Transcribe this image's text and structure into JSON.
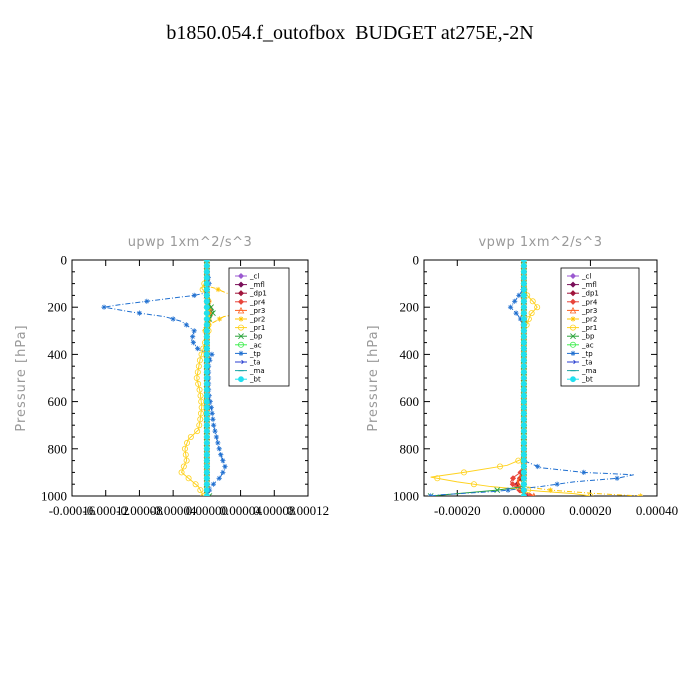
{
  "title": "b1850.054.f_outofbox  BUDGET at275E,-2N",
  "chart_data": [
    {
      "type": "line",
      "title": "upwp   1xm^2/s^3",
      "ylabel": "Pressure [hPa]",
      "xlim": [
        -0.00016,
        0.00012
      ],
      "ylim": [
        1000,
        0
      ],
      "xticks": [
        "-0.00016",
        "-0.00012",
        "-0.00008",
        "-0.00004",
        "0.00000",
        "0.00004",
        "0.00008",
        "0.00012"
      ],
      "yticks": [
        "0",
        "200",
        "400",
        "600",
        "800",
        "1000"
      ],
      "legend_position": "top-right",
      "series": [
        {
          "name": "_cl",
          "color": "#9b59d0",
          "marker": "diamond",
          "points": [
            [
              0,
              0
            ],
            [
              0,
              1000
            ]
          ]
        },
        {
          "name": "_mfl",
          "color": "#7a0f5a",
          "marker": "diamond",
          "points": [
            [
              0,
              0
            ],
            [
              0,
              1000
            ]
          ]
        },
        {
          "name": "_dp1",
          "color": "#a0143c",
          "marker": "diamond",
          "points": [
            [
              0,
              0
            ],
            [
              0,
              1000
            ]
          ]
        },
        {
          "name": "_pr4",
          "color": "#e8443a",
          "marker": "diamond",
          "points": [
            [
              0,
              0
            ],
            [
              0,
              150
            ],
            [
              3e-06,
              200
            ],
            [
              6e-06,
              215
            ],
            [
              0,
              250
            ],
            [
              0,
              1000
            ]
          ]
        },
        {
          "name": "_pr3",
          "color": "#ff6020",
          "marker": "triangle",
          "points": [
            [
              0,
              0
            ],
            [
              0,
              160
            ],
            [
              2e-06,
              200
            ],
            [
              4e-06,
              220
            ],
            [
              0,
              260
            ],
            [
              0,
              1000
            ]
          ]
        },
        {
          "name": "_pr2",
          "color": "#ffc400",
          "marker": "star",
          "points": [
            [
              0,
              0
            ],
            [
              0,
              90
            ],
            [
              0,
              110
            ],
            [
              1e-05,
              120
            ],
            [
              3e-05,
              150
            ],
            [
              5e-05,
              180
            ],
            [
              7e-05,
              200
            ],
            [
              5e-05,
              220
            ],
            [
              2e-05,
              240
            ],
            [
              5e-06,
              270
            ],
            [
              -5e-06,
              290
            ],
            [
              0,
              310
            ],
            [
              0,
              1000
            ]
          ]
        },
        {
          "name": "_pr1",
          "color": "#ffd21f",
          "marker": "circle",
          "points": [
            [
              0,
              0
            ],
            [
              0,
              80
            ],
            [
              -6e-06,
              120
            ],
            [
              2e-06,
              160
            ],
            [
              2e-06,
              300
            ],
            [
              -8e-06,
              420
            ],
            [
              -1.2e-05,
              500
            ],
            [
              -8e-06,
              560
            ],
            [
              -6e-06,
              620
            ],
            [
              -8e-06,
              680
            ],
            [
              -1e-05,
              720
            ],
            [
              -2.2e-05,
              760
            ],
            [
              -2.6e-05,
              800
            ],
            [
              -2.4e-05,
              850
            ],
            [
              -2.8e-05,
              880
            ],
            [
              -3e-05,
              900
            ],
            [
              -2e-05,
              930
            ],
            [
              -1e-05,
              960
            ],
            [
              -4e-06,
              1000
            ]
          ]
        },
        {
          "name": "_bp",
          "color": "#2aa33a",
          "marker": "cross",
          "points": [
            [
              0,
              0
            ],
            [
              0,
              170
            ],
            [
              5e-06,
              200
            ],
            [
              8e-06,
              220
            ],
            [
              3e-06,
              250
            ],
            [
              0,
              280
            ],
            [
              0,
              990
            ],
            [
              3e-06,
              1000
            ]
          ]
        },
        {
          "name": "_ac",
          "color": "#40ee50",
          "marker": "circle",
          "points": [
            [
              0,
              0
            ],
            [
              0,
              1000
            ]
          ]
        },
        {
          "name": "_tp",
          "color": "#1f6fd0",
          "marker": "star",
          "points": [
            [
              0,
              0
            ],
            [
              0,
              40
            ],
            [
              2e-06,
              80
            ],
            [
              3e-06,
              110
            ],
            [
              -2e-06,
              140
            ],
            [
              -1.5e-05,
              150
            ],
            [
              -6e-05,
              170
            ],
            [
              -0.000105,
              190
            ],
            [
              -0.000122,
              200
            ],
            [
              -9e-05,
              220
            ],
            [
              -5e-05,
              240
            ],
            [
              -3e-05,
              260
            ],
            [
              -1.5e-05,
              300
            ],
            [
              -1.8e-05,
              340
            ],
            [
              -1e-05,
              380
            ],
            [
              6e-06,
              400
            ],
            [
              2e-06,
              440
            ],
            [
              2e-06,
              560
            ],
            [
              6e-06,
              640
            ],
            [
              8e-06,
              700
            ],
            [
              1.2e-05,
              760
            ],
            [
              1.6e-05,
              820
            ],
            [
              2.2e-05,
              880
            ],
            [
              1.6e-05,
              920
            ],
            [
              5e-06,
              960
            ],
            [
              0,
              1000
            ]
          ]
        },
        {
          "name": "_ta",
          "color": "#2a3fd0",
          "marker": "arrow",
          "points": [
            [
              0,
              0
            ],
            [
              0,
              1000
            ]
          ]
        },
        {
          "name": "_ma",
          "color": "#20a8a8",
          "marker": "dash",
          "points": [
            [
              0,
              0
            ],
            [
              0,
              1000
            ]
          ]
        },
        {
          "name": "_bt",
          "color": "#20e0f0",
          "marker": "hexagon",
          "points": [
            [
              0,
              0
            ],
            [
              0,
              1000
            ]
          ]
        }
      ]
    },
    {
      "type": "line",
      "title": "vpwp   1xm^2/s^3",
      "ylabel": "Pressure [hPa]",
      "xlim": [
        -0.0003,
        0.0004
      ],
      "ylim": [
        1000,
        0
      ],
      "xticks": [
        "-0.00020",
        "0.00000",
        "0.00020",
        "0.00040"
      ],
      "yticks": [
        "0",
        "200",
        "400",
        "600",
        "800",
        "1000"
      ],
      "legend_position": "top-right",
      "series": [
        {
          "name": "_cl",
          "color": "#9b59d0",
          "marker": "diamond",
          "points": [
            [
              0,
              0
            ],
            [
              0,
              1000
            ]
          ]
        },
        {
          "name": "_mfl",
          "color": "#7a0f5a",
          "marker": "diamond",
          "points": [
            [
              0,
              0
            ],
            [
              0,
              1000
            ]
          ]
        },
        {
          "name": "_dp1",
          "color": "#a0143c",
          "marker": "diamond",
          "points": [
            [
              0,
              0
            ],
            [
              0,
              880
            ],
            [
              -1e-05,
              920
            ],
            [
              -2e-05,
              950
            ],
            [
              -1e-05,
              980
            ],
            [
              1e-05,
              1000
            ]
          ]
        },
        {
          "name": "_pr4",
          "color": "#e8443a",
          "marker": "diamond",
          "points": [
            [
              0,
              0
            ],
            [
              0,
              890
            ],
            [
              -3e-05,
              920
            ],
            [
              -4e-05,
              940
            ],
            [
              -2e-05,
              970
            ],
            [
              2e-05,
              1000
            ]
          ]
        },
        {
          "name": "_pr3",
          "color": "#ff6020",
          "marker": "triangle",
          "points": [
            [
              0,
              0
            ],
            [
              0,
              900
            ],
            [
              -2e-05,
              940
            ],
            [
              -1e-05,
              970
            ],
            [
              3e-05,
              1000
            ]
          ]
        },
        {
          "name": "_pr2",
          "color": "#ffc400",
          "marker": "star",
          "points": [
            [
              0,
              0
            ],
            [
              0,
              960
            ],
            [
              8e-05,
              975
            ],
            [
              0.00022,
              990
            ],
            [
              0.00035,
              1000
            ]
          ]
        },
        {
          "name": "_pr1",
          "color": "#ffd21f",
          "marker": "circle",
          "points": [
            [
              0,
              0
            ],
            [
              0,
              120
            ],
            [
              1e-05,
              150
            ],
            [
              3e-05,
              180
            ],
            [
              4e-05,
              200
            ],
            [
              2e-05,
              230
            ],
            [
              1e-05,
              270
            ],
            [
              0,
              300
            ],
            [
              0,
              840
            ],
            [
              -5e-05,
              870
            ],
            [
              -0.00018,
              900
            ],
            [
              -0.00028,
              920
            ],
            [
              -0.0002,
              940
            ],
            [
              -0.0001,
              960
            ],
            [
              5e-05,
              980
            ],
            [
              0.00015,
              990
            ],
            [
              0.0002,
              1000
            ]
          ]
        },
        {
          "name": "_bp",
          "color": "#2aa33a",
          "marker": "cross",
          "points": [
            [
              0,
              0
            ],
            [
              0,
              960
            ],
            [
              -8e-05,
              975
            ],
            [
              -0.0002,
              990
            ],
            [
              -0.00028,
              1000
            ]
          ]
        },
        {
          "name": "_ac",
          "color": "#40ee50",
          "marker": "circle",
          "points": [
            [
              0,
              0
            ],
            [
              0,
              1000
            ]
          ]
        },
        {
          "name": "_tp",
          "color": "#1f6fd0",
          "marker": "star",
          "points": [
            [
              0,
              0
            ],
            [
              0,
              120
            ],
            [
              -2e-05,
              160
            ],
            [
              -4e-05,
              200
            ],
            [
              -2e-05,
              230
            ],
            [
              -1e-05,
              250
            ],
            [
              0,
              280
            ],
            [
              0,
              850
            ],
            [
              5e-05,
              880
            ],
            [
              0.00018,
              900
            ],
            [
              0.00033,
              910
            ],
            [
              0.00028,
              925
            ],
            [
              0.00015,
              940
            ],
            [
              5e-05,
              960
            ],
            [
              -8e-05,
              980
            ],
            [
              -0.00025,
              995
            ],
            [
              -0.00028,
              1000
            ]
          ]
        },
        {
          "name": "_ta",
          "color": "#2a3fd0",
          "marker": "arrow",
          "points": [
            [
              0,
              0
            ],
            [
              0,
              1000
            ]
          ]
        },
        {
          "name": "_ma",
          "color": "#20a8a8",
          "marker": "dash",
          "points": [
            [
              0,
              0
            ],
            [
              0,
              1000
            ]
          ]
        },
        {
          "name": "_bt",
          "color": "#20e0f0",
          "marker": "hexagon",
          "points": [
            [
              0,
              0
            ],
            [
              0,
              1000
            ]
          ]
        }
      ]
    }
  ]
}
